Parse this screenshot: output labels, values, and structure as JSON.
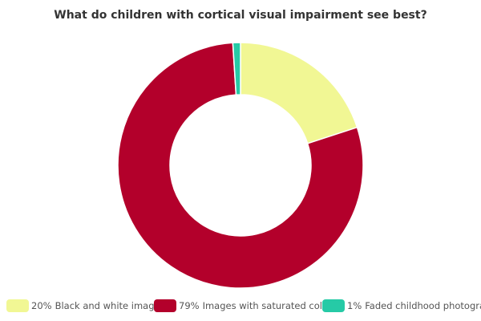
{
  "chart_data": {
    "type": "pie",
    "title": "What do children with cortical visual impairment see best?",
    "categories": [
      "Black and white images.",
      "Images with saturated colors.",
      "Faded childhood photographs."
    ],
    "values": [
      20,
      79,
      1
    ],
    "value_labels": [
      "20%",
      "79%",
      "1%"
    ],
    "colors": [
      "#f1f794",
      "#b3002b",
      "#26caa6"
    ],
    "legend": "bottom"
  }
}
